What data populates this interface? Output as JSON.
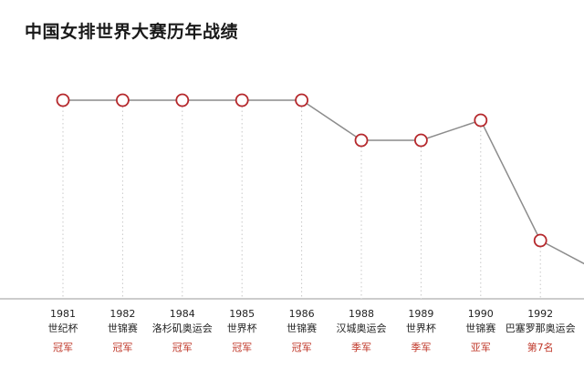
{
  "title": "中国女排世界大赛历年战绩",
  "colors": {
    "line": "#8c8c8c",
    "marker_stroke": "#b5282c",
    "marker_fill": "#ffffff",
    "guide": "#c8c8c8",
    "result_text": "#c0392b",
    "axis": "#999999"
  },
  "chart_data": {
    "type": "line",
    "title": "中国女排世界大赛历年战绩",
    "categories": [
      "1981",
      "1982",
      "1984",
      "1985",
      "1986",
      "1988",
      "1989",
      "1990",
      "1992"
    ],
    "events": [
      "世纪杯",
      "世锦赛",
      "洛杉矶奥运会",
      "世界杯",
      "世锦赛",
      "汉城奥运会",
      "世界杯",
      "世锦赛",
      "巴塞罗那奥运会"
    ],
    "results": [
      "冠军",
      "冠军",
      "冠军",
      "冠军",
      "冠军",
      "季军",
      "季军",
      "亚军",
      "第7名"
    ],
    "values": [
      1,
      1,
      1,
      1,
      1,
      3,
      3,
      2,
      7
    ],
    "y_axis": "rank (inverted, 1 at top)",
    "grid": "vertical dotted guides",
    "legend": "none"
  }
}
